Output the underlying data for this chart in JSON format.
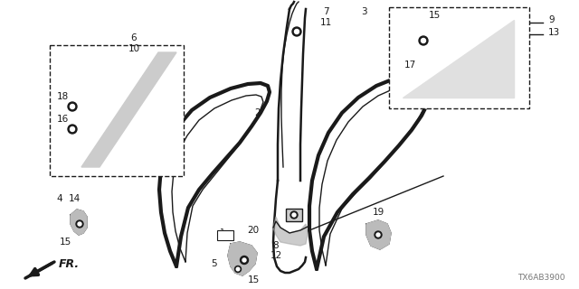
{
  "bg_color": "#ffffff",
  "line_color": "#1a1a1a",
  "part_number": "TX6AB3900",
  "fig_width": 6.4,
  "fig_height": 3.2,
  "dpi": 100
}
